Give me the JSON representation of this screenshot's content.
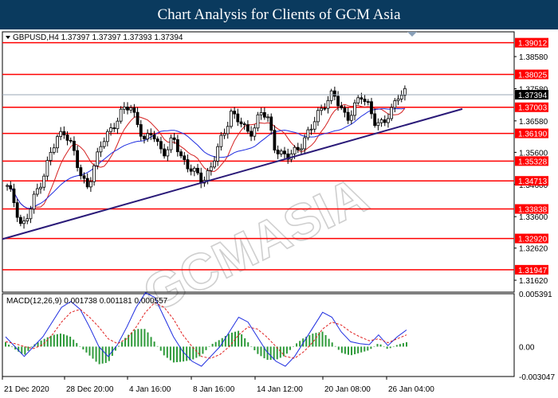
{
  "page_title": "Chart Analysis for Clients of GCM Asia",
  "watermark": "GCMASIA",
  "chart_data": [
    {
      "type": "candlestick",
      "symbol_info": "GBPUSD,H4  1.37397 1.37397 1.37393 1.37394",
      "current_price": "1.37394",
      "ylim": [
        1.3125,
        1.3935
      ],
      "price_ticks": [
        "1.38580",
        "1.37580",
        "1.36580",
        "1.35600",
        "1.34600",
        "1.33600",
        "1.32620",
        "1.31620"
      ],
      "levels": [
        {
          "label": "1.39012",
          "value": 1.39012
        },
        {
          "label": "1.38025",
          "value": 1.38025
        },
        {
          "label": "1.37003",
          "value": 1.37003
        },
        {
          "label": "1.36190",
          "value": 1.3619
        },
        {
          "label": "1.35328",
          "value": 1.35328
        },
        {
          "label": "1.34713",
          "value": 1.34713
        },
        {
          "label": "1.33838",
          "value": 1.33838
        },
        {
          "label": "1.32920",
          "value": 1.3292
        },
        {
          "label": "1.31947",
          "value": 1.31947
        }
      ],
      "trendline": {
        "start": 1.329,
        "end": 1.3695
      },
      "close_path": [
        1.345,
        1.34,
        1.333,
        1.337,
        1.343,
        1.349,
        1.356,
        1.36,
        1.363,
        1.358,
        1.349,
        1.345,
        1.352,
        1.358,
        1.362,
        1.366,
        1.369,
        1.37,
        1.366,
        1.359,
        1.362,
        1.358,
        1.356,
        1.36,
        1.355,
        1.352,
        1.349,
        1.347,
        1.351,
        1.356,
        1.362,
        1.369,
        1.366,
        1.362,
        1.363,
        1.369,
        1.366,
        1.358,
        1.3555,
        1.354,
        1.357,
        1.36,
        1.363,
        1.368,
        1.372,
        1.374,
        1.37,
        1.367,
        1.37,
        1.373,
        1.371,
        1.365,
        1.364,
        1.369,
        1.374,
        1.37394
      ],
      "x_ticks": [
        "21 Dec 2020",
        "28 Dec 20:00",
        "4 Jan 16:00",
        "8 Jan 16:00",
        "14 Jan 12:00",
        "20 Jan 08:00",
        "26 Jan 04:00"
      ]
    },
    {
      "type": "macd",
      "label": "MACD(12,26,9) 0.001738 0.001181 0.000557",
      "ylim": [
        -0.003047,
        0.005391
      ],
      "y_ticks": [
        "0.005391",
        "0.00",
        "-0.003047"
      ],
      "macd_path": [
        0.001,
        0.0,
        -0.001,
        0.0,
        0.001,
        0.0025,
        0.004,
        0.0046,
        0.0038,
        0.002,
        0.0,
        -0.001,
        0.0002,
        0.002,
        0.004,
        0.0055,
        0.005,
        0.003,
        0.001,
        -0.0005,
        -0.0015,
        -0.002,
        -0.001,
        0.0,
        0.0015,
        0.003,
        0.0025,
        0.001,
        -0.0005,
        -0.0015,
        -0.002,
        -0.001,
        0.0005,
        0.002,
        0.0035,
        0.003,
        0.0015,
        0.0005,
        0.0003,
        0.0002,
        0.0012,
        0.0001,
        0.001,
        0.0017
      ],
      "signal_path": [
        0.0005,
        0.0003,
        0.0,
        -0.0002,
        0.0002,
        0.0012,
        0.0025,
        0.0035,
        0.0038,
        0.003,
        0.002,
        0.0008,
        0.0003,
        0.0008,
        0.002,
        0.0035,
        0.0045,
        0.004,
        0.0028,
        0.0012,
        0.0,
        -0.001,
        -0.0012,
        -0.0008,
        0.0,
        0.0012,
        0.002,
        0.0018,
        0.001,
        0.0,
        -0.001,
        -0.0012,
        -0.0005,
        0.0005,
        0.0018,
        0.0025,
        0.0022,
        0.0015,
        0.001,
        0.0006,
        0.0008,
        0.0004,
        0.0008,
        0.0012
      ]
    }
  ]
}
